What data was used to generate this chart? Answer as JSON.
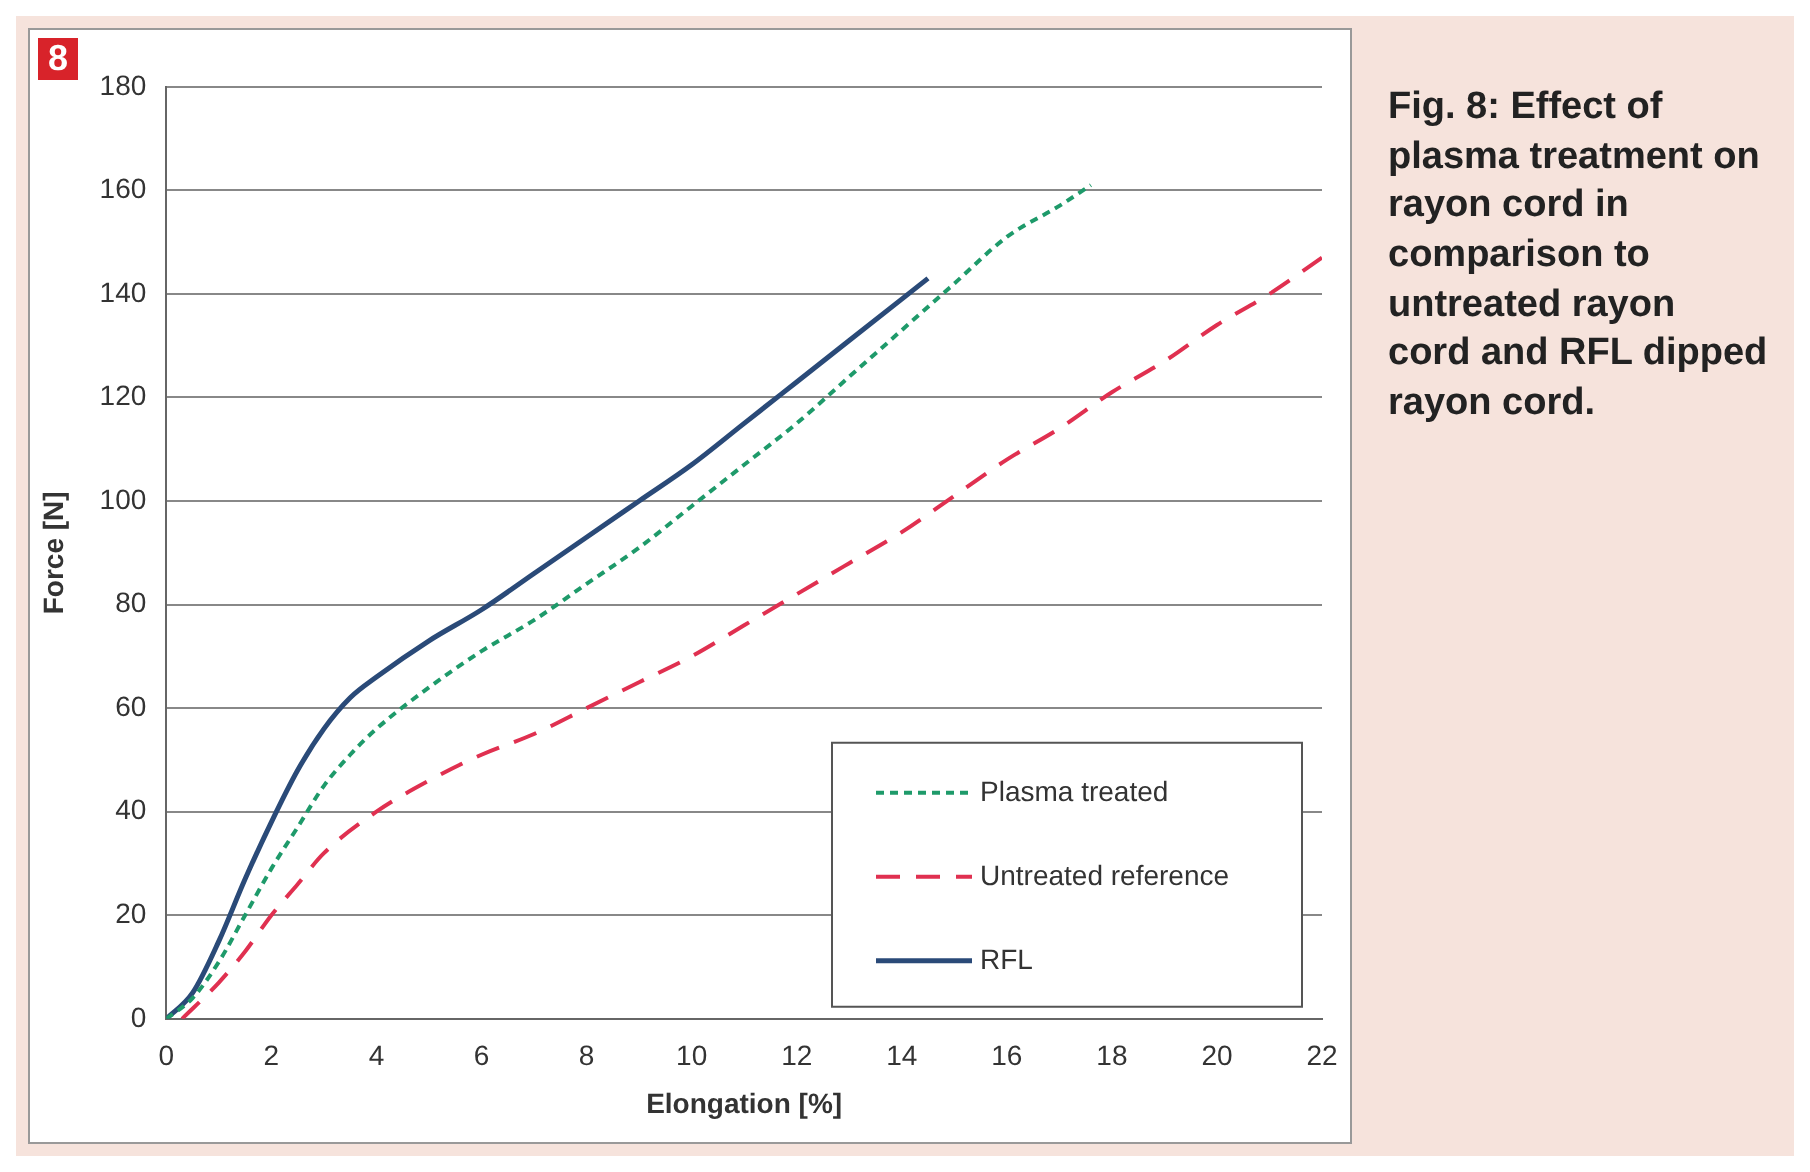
{
  "chart_data": {
    "type": "line",
    "xlabel": "Elongation [%]",
    "ylabel": "Force [N]",
    "annotations": [
      "8",
      "Fig. 8: Effect of plasma treatment on rayon cord in comparison to untreated rayon cord and RFL dipped rayon cord."
    ],
    "xlim": [
      0,
      22
    ],
    "xticks": [
      0,
      2,
      4,
      6,
      8,
      10,
      12,
      14,
      16,
      18,
      20,
      22
    ],
    "ylim": [
      0,
      180
    ],
    "yticks": [
      0,
      20,
      40,
      60,
      80,
      100,
      120,
      140,
      160,
      180
    ],
    "grid": "y",
    "legend": "bottom right",
    "marker": "none",
    "series": [
      {
        "name": "Plasma treated",
        "color": "#1e9a6a",
        "line_style": "dotted",
        "x": [
          0,
          0.5,
          1,
          1.5,
          2,
          2.5,
          3,
          3.5,
          4,
          5,
          6,
          7,
          8,
          9,
          10,
          11,
          12,
          13,
          14,
          15,
          16,
          17,
          17.6
        ],
        "values": [
          0,
          4,
          11,
          20,
          29,
          37,
          45,
          51,
          56,
          64,
          71,
          77,
          84,
          91,
          99,
          107,
          115,
          124,
          133,
          142,
          151,
          157,
          161
        ]
      },
      {
        "name": "Untreated reference",
        "color": "#e03050",
        "line_style": "dashed",
        "x": [
          0.3,
          1,
          1.5,
          2,
          2.5,
          3,
          4,
          5,
          6,
          7,
          8,
          9,
          10,
          11,
          12,
          13,
          14,
          15,
          16,
          17,
          18,
          19,
          20,
          21,
          22
        ],
        "values": [
          0,
          7,
          13,
          20,
          26,
          32,
          40,
          46,
          51,
          55,
          60,
          65,
          70,
          76,
          82,
          88,
          94,
          101,
          108,
          114,
          121,
          127,
          134,
          140,
          147
        ]
      },
      {
        "name": "RFL",
        "color": "#2a4a78",
        "line_style": "solid",
        "x": [
          0,
          0.5,
          1,
          1.5,
          2,
          2.5,
          3,
          3.5,
          4,
          5,
          6,
          7,
          8,
          9,
          10,
          11,
          12,
          13,
          14,
          14.5
        ],
        "values": [
          0,
          5,
          15,
          27,
          38,
          48,
          56,
          62,
          66,
          73,
          79,
          86,
          93,
          100,
          107,
          115,
          123,
          131,
          139,
          143
        ]
      }
    ]
  }
}
